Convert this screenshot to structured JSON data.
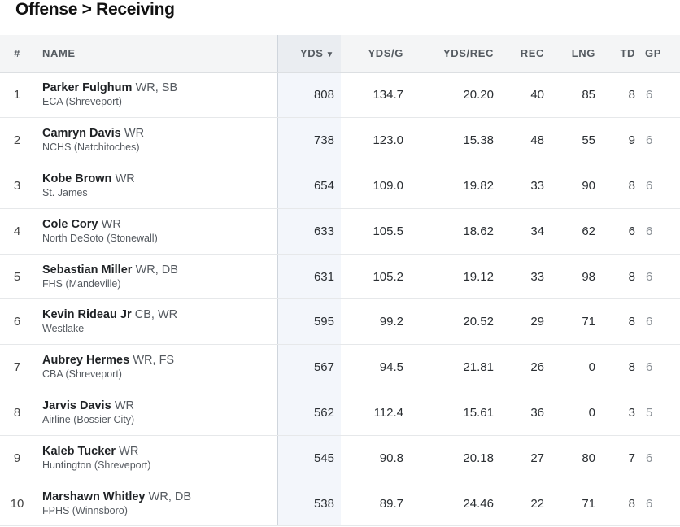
{
  "page_title": "Offense > Receiving",
  "columns": {
    "rank": "#",
    "name": "NAME",
    "yds": "YDS",
    "yds_sort_glyph": "▼",
    "ydsg": "YDS/G",
    "ydsrec": "YDS/REC",
    "rec": "REC",
    "lng": "LNG",
    "td": "TD",
    "gp": "GP"
  },
  "rows": [
    {
      "rank": "1",
      "name": "Parker Fulghum",
      "pos": "WR, SB",
      "school": "ECA (Shreveport)",
      "yds": "808",
      "ydsg": "134.7",
      "ydsrec": "20.20",
      "rec": "40",
      "lng": "85",
      "td": "8",
      "gp": "6"
    },
    {
      "rank": "2",
      "name": "Camryn Davis",
      "pos": "WR",
      "school": "NCHS (Natchitoches)",
      "yds": "738",
      "ydsg": "123.0",
      "ydsrec": "15.38",
      "rec": "48",
      "lng": "55",
      "td": "9",
      "gp": "6"
    },
    {
      "rank": "3",
      "name": "Kobe Brown",
      "pos": "WR",
      "school": "St. James",
      "yds": "654",
      "ydsg": "109.0",
      "ydsrec": "19.82",
      "rec": "33",
      "lng": "90",
      "td": "8",
      "gp": "6"
    },
    {
      "rank": "4",
      "name": "Cole Cory",
      "pos": "WR",
      "school": "North DeSoto (Stonewall)",
      "yds": "633",
      "ydsg": "105.5",
      "ydsrec": "18.62",
      "rec": "34",
      "lng": "62",
      "td": "6",
      "gp": "6"
    },
    {
      "rank": "5",
      "name": "Sebastian Miller",
      "pos": "WR, DB",
      "school": "FHS (Mandeville)",
      "yds": "631",
      "ydsg": "105.2",
      "ydsrec": "19.12",
      "rec": "33",
      "lng": "98",
      "td": "8",
      "gp": "6"
    },
    {
      "rank": "6",
      "name": "Kevin Rideau Jr",
      "pos": "CB, WR",
      "school": "Westlake",
      "yds": "595",
      "ydsg": "99.2",
      "ydsrec": "20.52",
      "rec": "29",
      "lng": "71",
      "td": "8",
      "gp": "6"
    },
    {
      "rank": "7",
      "name": "Aubrey Hermes",
      "pos": "WR, FS",
      "school": "CBA (Shreveport)",
      "yds": "567",
      "ydsg": "94.5",
      "ydsrec": "21.81",
      "rec": "26",
      "lng": "0",
      "td": "8",
      "gp": "6"
    },
    {
      "rank": "8",
      "name": "Jarvis Davis",
      "pos": "WR",
      "school": "Airline (Bossier City)",
      "yds": "562",
      "ydsg": "112.4",
      "ydsrec": "15.61",
      "rec": "36",
      "lng": "0",
      "td": "3",
      "gp": "5"
    },
    {
      "rank": "9",
      "name": "Kaleb Tucker",
      "pos": "WR",
      "school": "Huntington (Shreveport)",
      "yds": "545",
      "ydsg": "90.8",
      "ydsrec": "20.18",
      "rec": "27",
      "lng": "80",
      "td": "7",
      "gp": "6"
    },
    {
      "rank": "10",
      "name": "Marshawn Whitley",
      "pos": "WR, DB",
      "school": "FPHS (Winnsboro)",
      "yds": "538",
      "ydsg": "89.7",
      "ydsrec": "24.46",
      "rec": "22",
      "lng": "71",
      "td": "8",
      "gp": "6"
    }
  ]
}
